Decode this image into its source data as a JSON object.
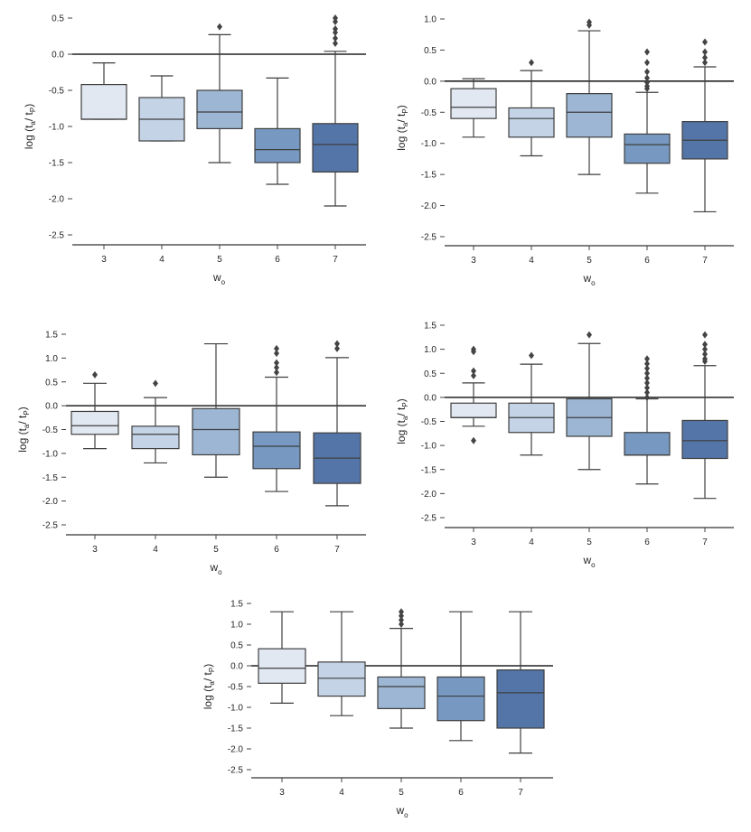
{
  "palette": [
    "#e1e8f2",
    "#c4d3e6",
    "#9cb6d3",
    "#7698c1",
    "#5475a8"
  ],
  "edge_color": "#3f3f3f",
  "chart_data": [
    {
      "type": "box",
      "panel": "top-left",
      "xlabel": "w",
      "xlabel_sub": "o",
      "ylabel_prefix": "log (t",
      "ylabel_sub1": "a",
      "ylabel_mid": "/ t",
      "ylabel_sub2": "P",
      "ylabel_suffix": ")",
      "categories": [
        "3",
        "4",
        "5",
        "6",
        "7"
      ],
      "yticks": [
        "0.5",
        "0.0",
        "-0.5",
        "-1.0",
        "-1.5",
        "-2.0",
        "-2.5"
      ],
      "ylim": [
        -2.5,
        0.5
      ],
      "reference_line": 0.0,
      "boxes": [
        {
          "q1": -0.9,
          "median": -0.9,
          "q3": -0.42,
          "whislo": -0.9,
          "whishi": -0.12,
          "fliers": []
        },
        {
          "q1": -1.2,
          "median": -0.9,
          "q3": -0.6,
          "whislo": -1.2,
          "whishi": -0.3,
          "fliers": []
        },
        {
          "q1": -1.03,
          "median": -0.8,
          "q3": -0.5,
          "whislo": -1.5,
          "whishi": 0.27,
          "fliers": [
            0.38
          ]
        },
        {
          "q1": -1.5,
          "median": -1.32,
          "q3": -1.03,
          "whislo": -1.8,
          "whishi": -0.33,
          "fliers": []
        },
        {
          "q1": -1.63,
          "median": -1.25,
          "q3": -0.96,
          "whislo": -2.1,
          "whishi": 0.04,
          "fliers": [
            0.5,
            0.45,
            0.35,
            0.3,
            0.22,
            0.15
          ]
        }
      ]
    },
    {
      "type": "box",
      "panel": "top-right",
      "xlabel": "w",
      "xlabel_sub": "o",
      "ylabel_prefix": "log (t",
      "ylabel_sub1": "a",
      "ylabel_mid": "/ t",
      "ylabel_sub2": "P",
      "ylabel_suffix": ")",
      "categories": [
        "3",
        "4",
        "5",
        "6",
        "7"
      ],
      "yticks": [
        "1.0",
        "0.5",
        "0.0",
        "-0.5",
        "-1.0",
        "-1.5",
        "-2.0",
        "-2.5"
      ],
      "ylim": [
        -2.5,
        1.0
      ],
      "reference_line": 0.0,
      "boxes": [
        {
          "q1": -0.6,
          "median": -0.42,
          "q3": -0.12,
          "whislo": -0.9,
          "whishi": 0.04,
          "fliers": []
        },
        {
          "q1": -0.9,
          "median": -0.6,
          "q3": -0.43,
          "whislo": -1.2,
          "whishi": 0.17,
          "fliers": [
            0.3
          ]
        },
        {
          "q1": -0.9,
          "median": -0.5,
          "q3": -0.2,
          "whislo": -1.5,
          "whishi": 0.81,
          "fliers": [
            0.9,
            0.95
          ]
        },
        {
          "q1": -1.32,
          "median": -1.02,
          "q3": -0.85,
          "whislo": -1.8,
          "whishi": -0.18,
          "fliers": [
            0.47,
            0.3,
            0.15,
            0.05,
            -0.02,
            -0.08,
            -0.12
          ]
        },
        {
          "q1": -1.25,
          "median": -0.95,
          "q3": -0.65,
          "whislo": -2.1,
          "whishi": 0.23,
          "fliers": [
            0.63,
            0.47,
            0.38,
            0.3
          ]
        }
      ]
    },
    {
      "type": "box",
      "panel": "middle-left",
      "xlabel": "w",
      "xlabel_sub": "o",
      "ylabel_prefix": "log (t",
      "ylabel_sub1": "a",
      "ylabel_mid": "/ t",
      "ylabel_sub2": "P",
      "ylabel_suffix": ")",
      "categories": [
        "3",
        "4",
        "5",
        "6",
        "7"
      ],
      "yticks": [
        "1.5",
        "1.0",
        "0.5",
        "0.0",
        "-0.5",
        "-1.0",
        "-1.5",
        "-2.0",
        "-2.5"
      ],
      "ylim": [
        -2.5,
        1.5
      ],
      "reference_line": 0.0,
      "boxes": [
        {
          "q1": -0.6,
          "median": -0.42,
          "q3": -0.12,
          "whislo": -0.9,
          "whishi": 0.47,
          "fliers": [
            0.65
          ]
        },
        {
          "q1": -0.9,
          "median": -0.6,
          "q3": -0.43,
          "whislo": -1.2,
          "whishi": 0.17,
          "fliers": [
            0.47
          ]
        },
        {
          "q1": -1.03,
          "median": -0.5,
          "q3": -0.06,
          "whislo": -1.5,
          "whishi": 1.3,
          "fliers": []
        },
        {
          "q1": -1.32,
          "median": -0.85,
          "q3": -0.55,
          "whislo": -1.8,
          "whishi": 0.6,
          "fliers": [
            1.2,
            1.1,
            0.9,
            0.8,
            0.7
          ]
        },
        {
          "q1": -1.63,
          "median": -1.1,
          "q3": -0.57,
          "whislo": -2.1,
          "whishi": 1.01,
          "fliers": [
            1.3,
            1.2
          ]
        }
      ]
    },
    {
      "type": "box",
      "panel": "middle-right",
      "xlabel": "w",
      "xlabel_sub": "o",
      "ylabel_prefix": "log (t",
      "ylabel_sub1": "a",
      "ylabel_mid": "/ t",
      "ylabel_sub2": "P",
      "ylabel_suffix": ")",
      "categories": [
        "3",
        "4",
        "5",
        "6",
        "7"
      ],
      "yticks": [
        "1.5",
        "1.0",
        "0.5",
        "0.0",
        "-0.5",
        "-1.0",
        "-1.5",
        "-2.0",
        "-2.5"
      ],
      "ylim": [
        -2.5,
        1.5
      ],
      "reference_line": 0.0,
      "boxes": [
        {
          "q1": -0.42,
          "median": -0.42,
          "q3": -0.12,
          "whislo": -0.6,
          "whishi": 0.3,
          "fliers": [
            1.0,
            0.95,
            0.55,
            0.45,
            -0.9
          ]
        },
        {
          "q1": -0.73,
          "median": -0.42,
          "q3": -0.12,
          "whislo": -1.2,
          "whishi": 0.69,
          "fliers": [
            0.87
          ]
        },
        {
          "q1": -0.81,
          "median": -0.42,
          "q3": -0.03,
          "whislo": -1.5,
          "whishi": 1.12,
          "fliers": [
            1.3
          ]
        },
        {
          "q1": -1.2,
          "median": -1.2,
          "q3": -0.73,
          "whislo": -1.8,
          "whishi": -0.03,
          "fliers": [
            0.8,
            0.7,
            0.6,
            0.5,
            0.4,
            0.3,
            0.2,
            0.1,
            0.0
          ]
        },
        {
          "q1": -1.27,
          "median": -0.9,
          "q3": -0.48,
          "whislo": -2.1,
          "whishi": 0.66,
          "fliers": [
            1.3,
            1.1,
            1.0,
            0.9,
            0.8,
            0.75
          ]
        }
      ]
    },
    {
      "type": "box",
      "panel": "bottom-center",
      "xlabel": "w",
      "xlabel_sub": "o",
      "ylabel_prefix": "log (t",
      "ylabel_sub1": "a",
      "ylabel_mid": "/ t",
      "ylabel_sub2": "P",
      "ylabel_suffix": ")",
      "categories": [
        "3",
        "4",
        "5",
        "6",
        "7"
      ],
      "yticks": [
        "1.5",
        "1.0",
        "0.5",
        "0.0",
        "-0.5",
        "-1.0",
        "-1.5",
        "-2.0",
        "-2.5"
      ],
      "ylim": [
        -2.5,
        1.5
      ],
      "reference_line": 0.0,
      "boxes": [
        {
          "q1": -0.42,
          "median": -0.06,
          "q3": 0.41,
          "whislo": -0.9,
          "whishi": 1.3,
          "fliers": []
        },
        {
          "q1": -0.73,
          "median": -0.3,
          "q3": 0.09,
          "whislo": -1.2,
          "whishi": 1.3,
          "fliers": []
        },
        {
          "q1": -1.03,
          "median": -0.5,
          "q3": -0.27,
          "whislo": -1.5,
          "whishi": 0.9,
          "fliers": [
            1.3,
            1.2,
            1.1,
            1.0
          ]
        },
        {
          "q1": -1.32,
          "median": -0.73,
          "q3": -0.27,
          "whislo": -1.8,
          "whishi": 1.3,
          "fliers": []
        },
        {
          "q1": -1.5,
          "median": -0.65,
          "q3": -0.1,
          "whislo": -2.1,
          "whishi": 1.3,
          "fliers": []
        }
      ]
    }
  ]
}
